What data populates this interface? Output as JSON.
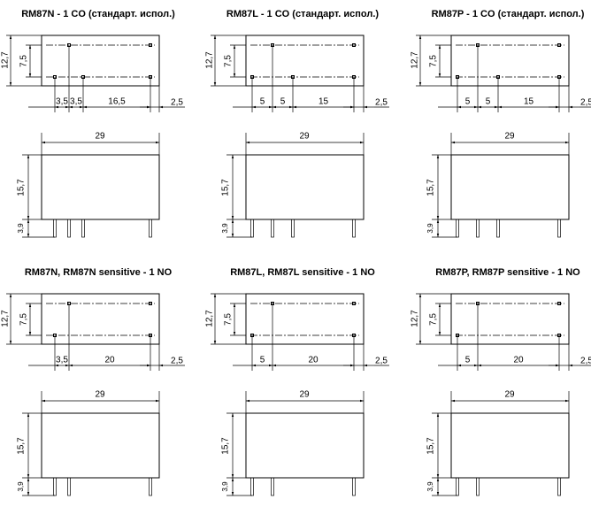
{
  "panels": [
    {
      "title": "RM87N - 1 CO (стандарт. испол.)",
      "top": {
        "height": "12,7",
        "pitch": "7,5",
        "spacings": [
          "3,5",
          "3,5",
          "16,5"
        ],
        "edge": "2,5"
      },
      "side": {
        "width": "29",
        "height": "15,7",
        "pin": "3,9"
      }
    },
    {
      "title": "RM87L - 1 CO (стандарт. испол.)",
      "top": {
        "height": "12,7",
        "pitch": "7,5",
        "spacings": [
          "5",
          "5",
          "15"
        ],
        "edge": "2,5"
      },
      "side": {
        "width": "29",
        "height": "15,7",
        "pin": "3,9"
      }
    },
    {
      "title": "RM87P - 1 CO (стандарт. испол.)",
      "top": {
        "height": "12,7",
        "pitch": "7,5",
        "spacings": [
          "5",
          "5",
          "15"
        ],
        "edge": "2,5"
      },
      "side": {
        "width": "29",
        "height": "15,7",
        "pin": "3,9"
      }
    },
    {
      "title": "RM87N, RM87N sensitive - 1 NO",
      "top": {
        "height": "12,7",
        "pitch": "7,5",
        "spacings": [
          "3,5",
          "20"
        ],
        "edge": "2,5"
      },
      "side": {
        "width": "29",
        "height": "15,7",
        "pin": "3,9"
      }
    },
    {
      "title": "RM87L, RM87L sensitive - 1 NO",
      "top": {
        "height": "12,7",
        "pitch": "7,5",
        "spacings": [
          "5",
          "20"
        ],
        "edge": "2,5"
      },
      "side": {
        "width": "29",
        "height": "15,7",
        "pin": "3,9"
      }
    },
    {
      "title": "RM87P, RM87P sensitive - 1 NO",
      "top": {
        "height": "12,7",
        "pitch": "7,5",
        "spacings": [
          "5",
          "20"
        ],
        "edge": "2,5"
      },
      "side": {
        "width": "29",
        "height": "15,7",
        "pin": "3,9"
      }
    }
  ]
}
